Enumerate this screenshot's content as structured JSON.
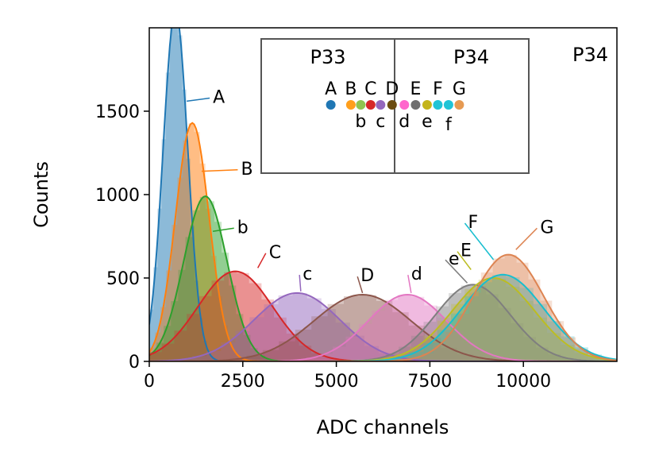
{
  "chart_data": {
    "type": "area",
    "xlabel": "ADC channels",
    "ylabel": "Counts",
    "panel_label": "P34",
    "xlim": [
      0,
      12500
    ],
    "ylim": [
      0,
      2000
    ],
    "xticks": [
      0,
      2500,
      5000,
      7500,
      10000
    ],
    "xtick_labels": [
      "0",
      "2500",
      "5000",
      "7500",
      "10000"
    ],
    "yticks": [
      0,
      500,
      1000,
      1500
    ],
    "ytick_labels": [
      "0",
      "500",
      "1000",
      "1500"
    ],
    "grid": false,
    "series": [
      {
        "label": "A",
        "color": "#1f77b4",
        "peak_x": 700,
        "peak_y": 2100,
        "width": 330,
        "label_text_at": [
          1700,
          1550
        ],
        "label_line_from": [
          1000,
          1560
        ]
      },
      {
        "label": "B",
        "color": "#ff7f0e",
        "peak_x": 1150,
        "peak_y": 1430,
        "width": 450,
        "label_text_at": [
          2450,
          1120
        ],
        "label_line_from": [
          1400,
          1140
        ]
      },
      {
        "label": "b",
        "color": "#2ca02c",
        "peak_x": 1500,
        "peak_y": 990,
        "width": 580,
        "label_text_at": [
          2350,
          770
        ],
        "label_line_from": [
          1700,
          780
        ]
      },
      {
        "label": "C",
        "color": "#d62728",
        "peak_x": 2300,
        "peak_y": 540,
        "width": 1000,
        "label_text_at": [
          3200,
          620
        ],
        "label_line_from": [
          2900,
          560
        ]
      },
      {
        "label": "c",
        "color": "#9467bd",
        "peak_x": 3950,
        "peak_y": 410,
        "width": 1150,
        "label_text_at": [
          4100,
          490
        ],
        "label_line_from": [
          4050,
          420
        ]
      },
      {
        "label": "D",
        "color": "#8c564b",
        "peak_x": 5700,
        "peak_y": 400,
        "width": 1300,
        "label_text_at": [
          5650,
          480
        ],
        "label_line_from": [
          5700,
          410
        ]
      },
      {
        "label": "d",
        "color": "#e377c2",
        "peak_x": 6900,
        "peak_y": 400,
        "width": 1050,
        "label_text_at": [
          7000,
          490
        ],
        "label_line_from": [
          7000,
          410
        ]
      },
      {
        "label": "e",
        "color": "#7f7f7f",
        "peak_x": 8650,
        "peak_y": 460,
        "width": 1000,
        "label_text_at": [
          8000,
          580
        ],
        "label_line_from": [
          8500,
          470
        ]
      },
      {
        "label": "E",
        "color": "#bcbd22",
        "peak_x": 9200,
        "peak_y": 500,
        "width": 1100,
        "label_text_at": [
          8320,
          630
        ],
        "label_line_from": [
          8600,
          550
        ]
      },
      {
        "label": "F",
        "color": "#17becf",
        "peak_x": 9450,
        "peak_y": 520,
        "width": 1100,
        "label_text_at": [
          8520,
          800
        ],
        "label_line_from": [
          9200,
          610
        ]
      },
      {
        "label": "G",
        "color": "#dd8452",
        "peak_x": 9600,
        "peak_y": 640,
        "width": 950,
        "label_text_at": [
          10450,
          770
        ],
        "label_line_from": [
          9800,
          670
        ]
      }
    ],
    "inset": {
      "left_label": "P33",
      "right_label": "P34",
      "markers": [
        {
          "label": "A",
          "color": "#1f77b4",
          "pos": 0.26,
          "above": true
        },
        {
          "label": "B",
          "color": "#ff9f1c",
          "pos": 0.335,
          "above": true
        },
        {
          "label": "b",
          "color": "#8fc450",
          "pos": 0.372,
          "above": false
        },
        {
          "label": "C",
          "color": "#d62728",
          "pos": 0.409,
          "above": true
        },
        {
          "label": "c",
          "color": "#9467bd",
          "pos": 0.446,
          "above": false
        },
        {
          "label": "D",
          "color": "#6b4c0f",
          "pos": 0.489,
          "above": true
        },
        {
          "label": "d",
          "color": "#ff66cc",
          "pos": 0.535,
          "above": false
        },
        {
          "label": "E",
          "color": "#6e6e6e",
          "pos": 0.577,
          "above": true
        },
        {
          "label": "e",
          "color": "#c4b41a",
          "pos": 0.62,
          "above": false
        },
        {
          "label": "F",
          "color": "#1fc4d6",
          "pos": 0.66,
          "above": true
        },
        {
          "label": "f",
          "color": "#1fc4d6",
          "pos": 0.7,
          "above": false
        },
        {
          "label": "G",
          "color": "#e69a52",
          "pos": 0.74,
          "above": true
        }
      ]
    }
  }
}
